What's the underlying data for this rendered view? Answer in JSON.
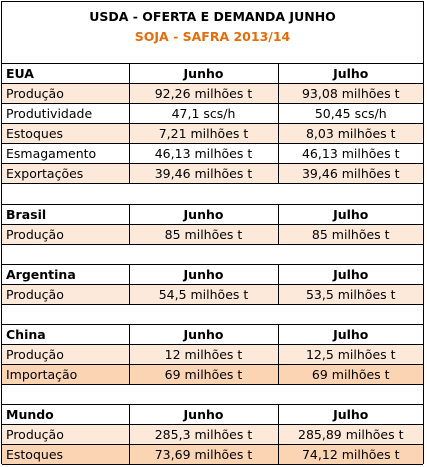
{
  "header": {
    "title": "USDA - OFERTA E DEMANDA JUNHO",
    "subtitle": "SOJA - SAFRA 2013/14"
  },
  "colors": {
    "subtitle": "#e46c0a",
    "row_light": "#fde9d9",
    "row_dark": "#fbd4b4"
  },
  "sections": [
    {
      "name": "EUA",
      "col1": "Junho",
      "col2": "Julho",
      "rows": [
        {
          "label": "Produção",
          "v1": "92,26 milhões t",
          "v2": "93,08 milhões t",
          "shade": "light"
        },
        {
          "label": "Produtividade",
          "v1": "47,1 scs/h",
          "v2": "50,45 scs/h",
          "shade": "white"
        },
        {
          "label": "Estoques",
          "v1": "7,21 milhões t",
          "v2": "8,03 milhões t",
          "shade": "light"
        },
        {
          "label": "Esmagamento",
          "v1": "46,13 milhões t",
          "v2": "46,13 milhões t",
          "shade": "white"
        },
        {
          "label": "Exportações",
          "v1": "39,46 milhões t",
          "v2": "39,46 milhões t",
          "shade": "light"
        }
      ]
    },
    {
      "name": "Brasil",
      "col1": "Junho",
      "col2": "Julho",
      "rows": [
        {
          "label": "Produção",
          "v1": "85 milhões t",
          "v2": "85 milhões t",
          "shade": "light"
        }
      ]
    },
    {
      "name": "Argentina",
      "col1": "Junho",
      "col2": "Julho",
      "rows": [
        {
          "label": "Produção",
          "v1": "54,5 milhões t",
          "v2": "53,5 milhões t",
          "shade": "light"
        }
      ]
    },
    {
      "name": "China",
      "col1": "Junho",
      "col2": "Julho",
      "rows": [
        {
          "label": "Produção",
          "v1": "12 milhões t",
          "v2": "12,5 milhões t",
          "shade": "light"
        },
        {
          "label": "Importação",
          "v1": "69 milhões t",
          "v2": "69 milhões t",
          "shade": "dark"
        }
      ]
    },
    {
      "name": "Mundo",
      "col1": "Junho",
      "col2": "Julho",
      "rows": [
        {
          "label": "Produção",
          "v1": "285,3 milhões t",
          "v2": "285,89 milhões t",
          "shade": "light"
        },
        {
          "label": "Estoques",
          "v1": "73,69 milhões t",
          "v2": "74,12 milhões t",
          "shade": "dark"
        }
      ]
    }
  ]
}
